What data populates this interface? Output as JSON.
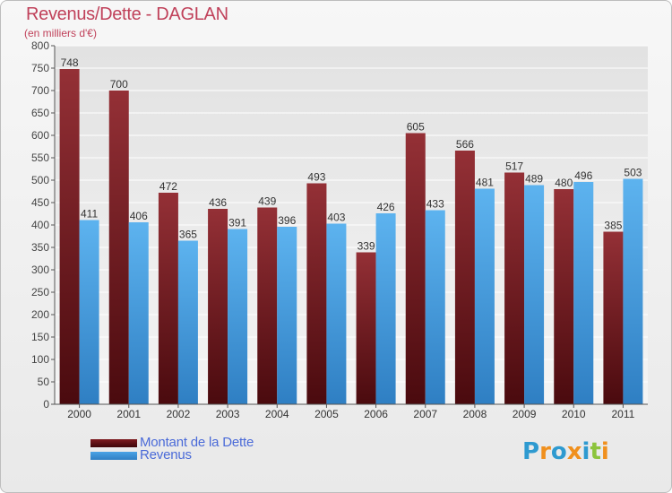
{
  "title": "Revenus/Dette - DAGLAN",
  "subtitle": "(en milliers d'€)",
  "colors": {
    "dette": "#7e1b20",
    "revenus": "#4aa3e6",
    "title": "#c0415a",
    "legend_text": "#4a6ad8"
  },
  "legend": {
    "dette_label": "Montant de la Dette",
    "revenus_label": "Revenus"
  },
  "logo": {
    "text": "Proxiti",
    "letters": [
      "P",
      "r",
      "o",
      "x",
      "i",
      "t",
      "i"
    ],
    "letter_colors": [
      "#2e9ad0",
      "#f0901e",
      "#2e9ad0",
      "#f0901e",
      "#2e9ad0",
      "#8cc43c",
      "#f0901e"
    ]
  },
  "chart_data": {
    "type": "bar",
    "title": "Revenus/Dette - DAGLAN",
    "subtitle": "(en milliers d'€)",
    "categories": [
      "2000",
      "2001",
      "2002",
      "2003",
      "2004",
      "2005",
      "2006",
      "2007",
      "2008",
      "2009",
      "2010",
      "2011"
    ],
    "series": [
      {
        "name": "Montant de la Dette",
        "values": [
          748,
          700,
          472,
          436,
          439,
          493,
          339,
          605,
          566,
          517,
          480,
          385
        ]
      },
      {
        "name": "Revenus",
        "values": [
          411,
          406,
          365,
          391,
          396,
          403,
          426,
          433,
          481,
          489,
          496,
          503
        ]
      }
    ],
    "ylim": [
      0,
      800
    ],
    "yticks": [
      0,
      50,
      100,
      150,
      200,
      250,
      300,
      350,
      400,
      450,
      500,
      550,
      600,
      650,
      700,
      750,
      800
    ],
    "grid": true,
    "legend_position": "bottom-left"
  }
}
